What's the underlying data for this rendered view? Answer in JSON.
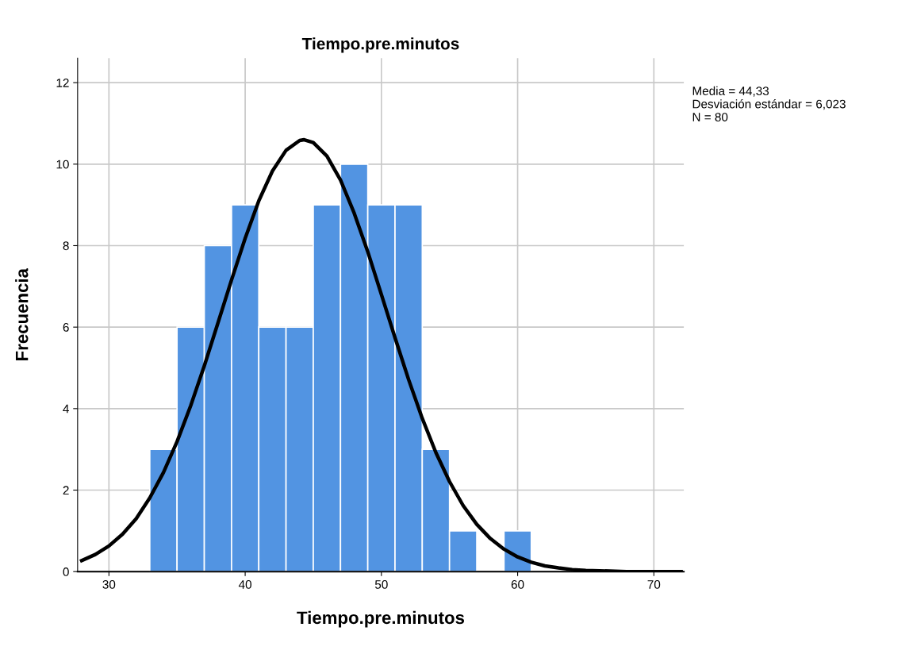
{
  "chart_data": {
    "type": "histogram",
    "title": "Tiempo.pre.minutos",
    "xlabel": "Tiempo.pre.minutos",
    "ylabel": "Frecuencia",
    "bins": [
      33,
      35,
      37,
      39,
      41,
      43,
      45,
      47,
      49,
      51,
      53,
      55,
      57,
      59,
      61
    ],
    "values": [
      3,
      6,
      8,
      9,
      6,
      6,
      9,
      10,
      9,
      9,
      3,
      1,
      0,
      1
    ],
    "color": "#5294e2",
    "series": [
      {
        "type": "line",
        "color": "#000000",
        "x": [
          28,
          29,
          30,
          31,
          32,
          33,
          34,
          35,
          36,
          37,
          38,
          39,
          40,
          41,
          42,
          43,
          44,
          44.33,
          45,
          46,
          47,
          48,
          49,
          50,
          51,
          52,
          53,
          54,
          55,
          56,
          57,
          58,
          59,
          60,
          61,
          62,
          63,
          64,
          65,
          66,
          68,
          70,
          72
        ],
        "values": [
          0.27,
          0.42,
          0.63,
          0.92,
          1.3,
          1.81,
          2.43,
          3.19,
          4.07,
          5.05,
          6.1,
          7.16,
          8.18,
          9.1,
          9.83,
          10.34,
          10.58,
          10.6,
          10.53,
          10.2,
          9.61,
          8.8,
          7.85,
          6.8,
          5.74,
          4.71,
          3.76,
          2.92,
          2.21,
          1.62,
          1.16,
          0.81,
          0.55,
          0.36,
          0.23,
          0.14,
          0.09,
          0.05,
          0.03,
          0.02,
          0.0,
          0.0,
          0.0
        ]
      }
    ],
    "xlim": [
      27.7,
      72.2
    ],
    "ylim": [
      0,
      12.6
    ],
    "xticks": [
      30,
      40,
      50,
      60,
      70
    ],
    "yticks": [
      0,
      2,
      4,
      6,
      8,
      10,
      12
    ],
    "grid": true,
    "marker": "none",
    "line_style": "solid",
    "annotations": [
      "Media = 44,33",
      "Desviación estándar = 6,023",
      "N = 80"
    ]
  }
}
